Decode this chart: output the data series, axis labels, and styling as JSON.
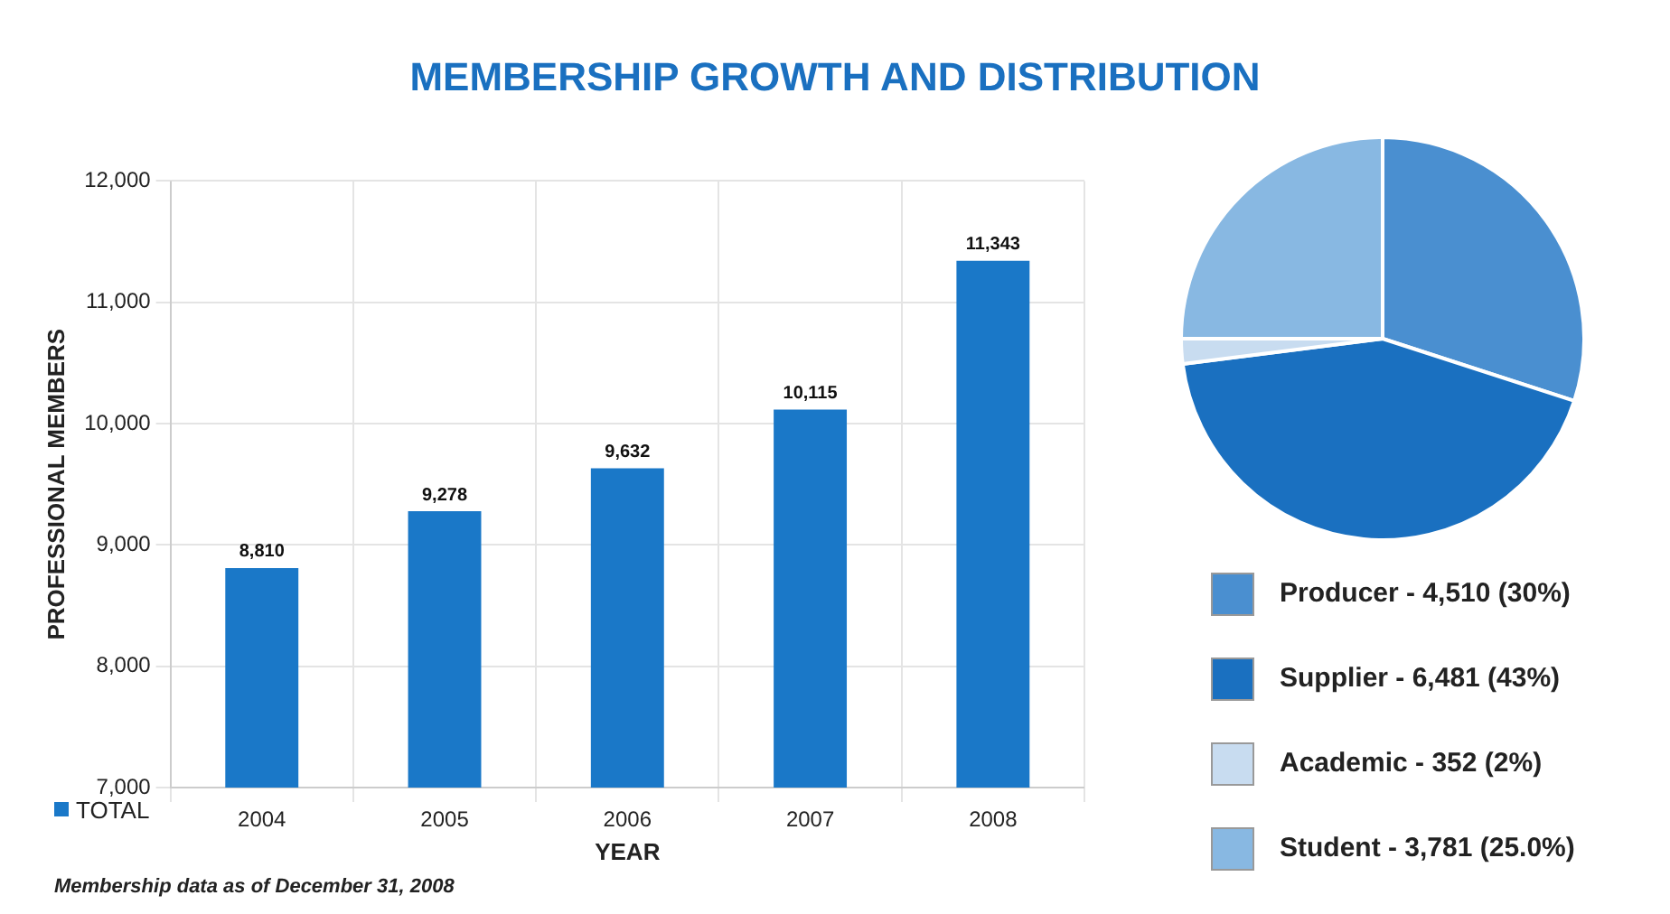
{
  "chart_data": [
    {
      "type": "bar",
      "title": "MEMBERSHIP GROWTH AND DISTRIBUTION",
      "xlabel": "YEAR",
      "ylabel": "PROFESSIONAL MEMBERS",
      "categories": [
        "2004",
        "2005",
        "2006",
        "2007",
        "2008"
      ],
      "series": [
        {
          "name": "TOTAL",
          "color": "#1a78c8",
          "values": [
            8810,
            9278,
            9632,
            10115,
            11343
          ],
          "value_labels": [
            "8,810",
            "9,278",
            "9,632",
            "10,115",
            "11,343"
          ]
        }
      ],
      "ylim": [
        7000,
        12000
      ],
      "yticks": [
        {
          "value": 7000,
          "label": "7,000"
        },
        {
          "value": 8000,
          "label": "8,000"
        },
        {
          "value": 9000,
          "label": "9,000"
        },
        {
          "value": 10000,
          "label": "10,000"
        },
        {
          "value": 11000,
          "label": "11,000"
        },
        {
          "value": 12000,
          "label": "12,000"
        }
      ],
      "grid": true,
      "legend": "bottom left",
      "annotations": [
        "Membership data as of December 31, 2008"
      ]
    },
    {
      "type": "pie",
      "categories": [
        "Producer - 4,510 (30%)",
        "Supplier - 6,481 (43%)",
        "Academic - 352 (2%)",
        "Student - 3,781 (25.0%)"
      ],
      "values": [
        30,
        43,
        2,
        25
      ],
      "colors": [
        "#4a8fd0",
        "#1a70c0",
        "#c8dcf0",
        "#88b8e2"
      ],
      "legend": "bottom"
    }
  ]
}
